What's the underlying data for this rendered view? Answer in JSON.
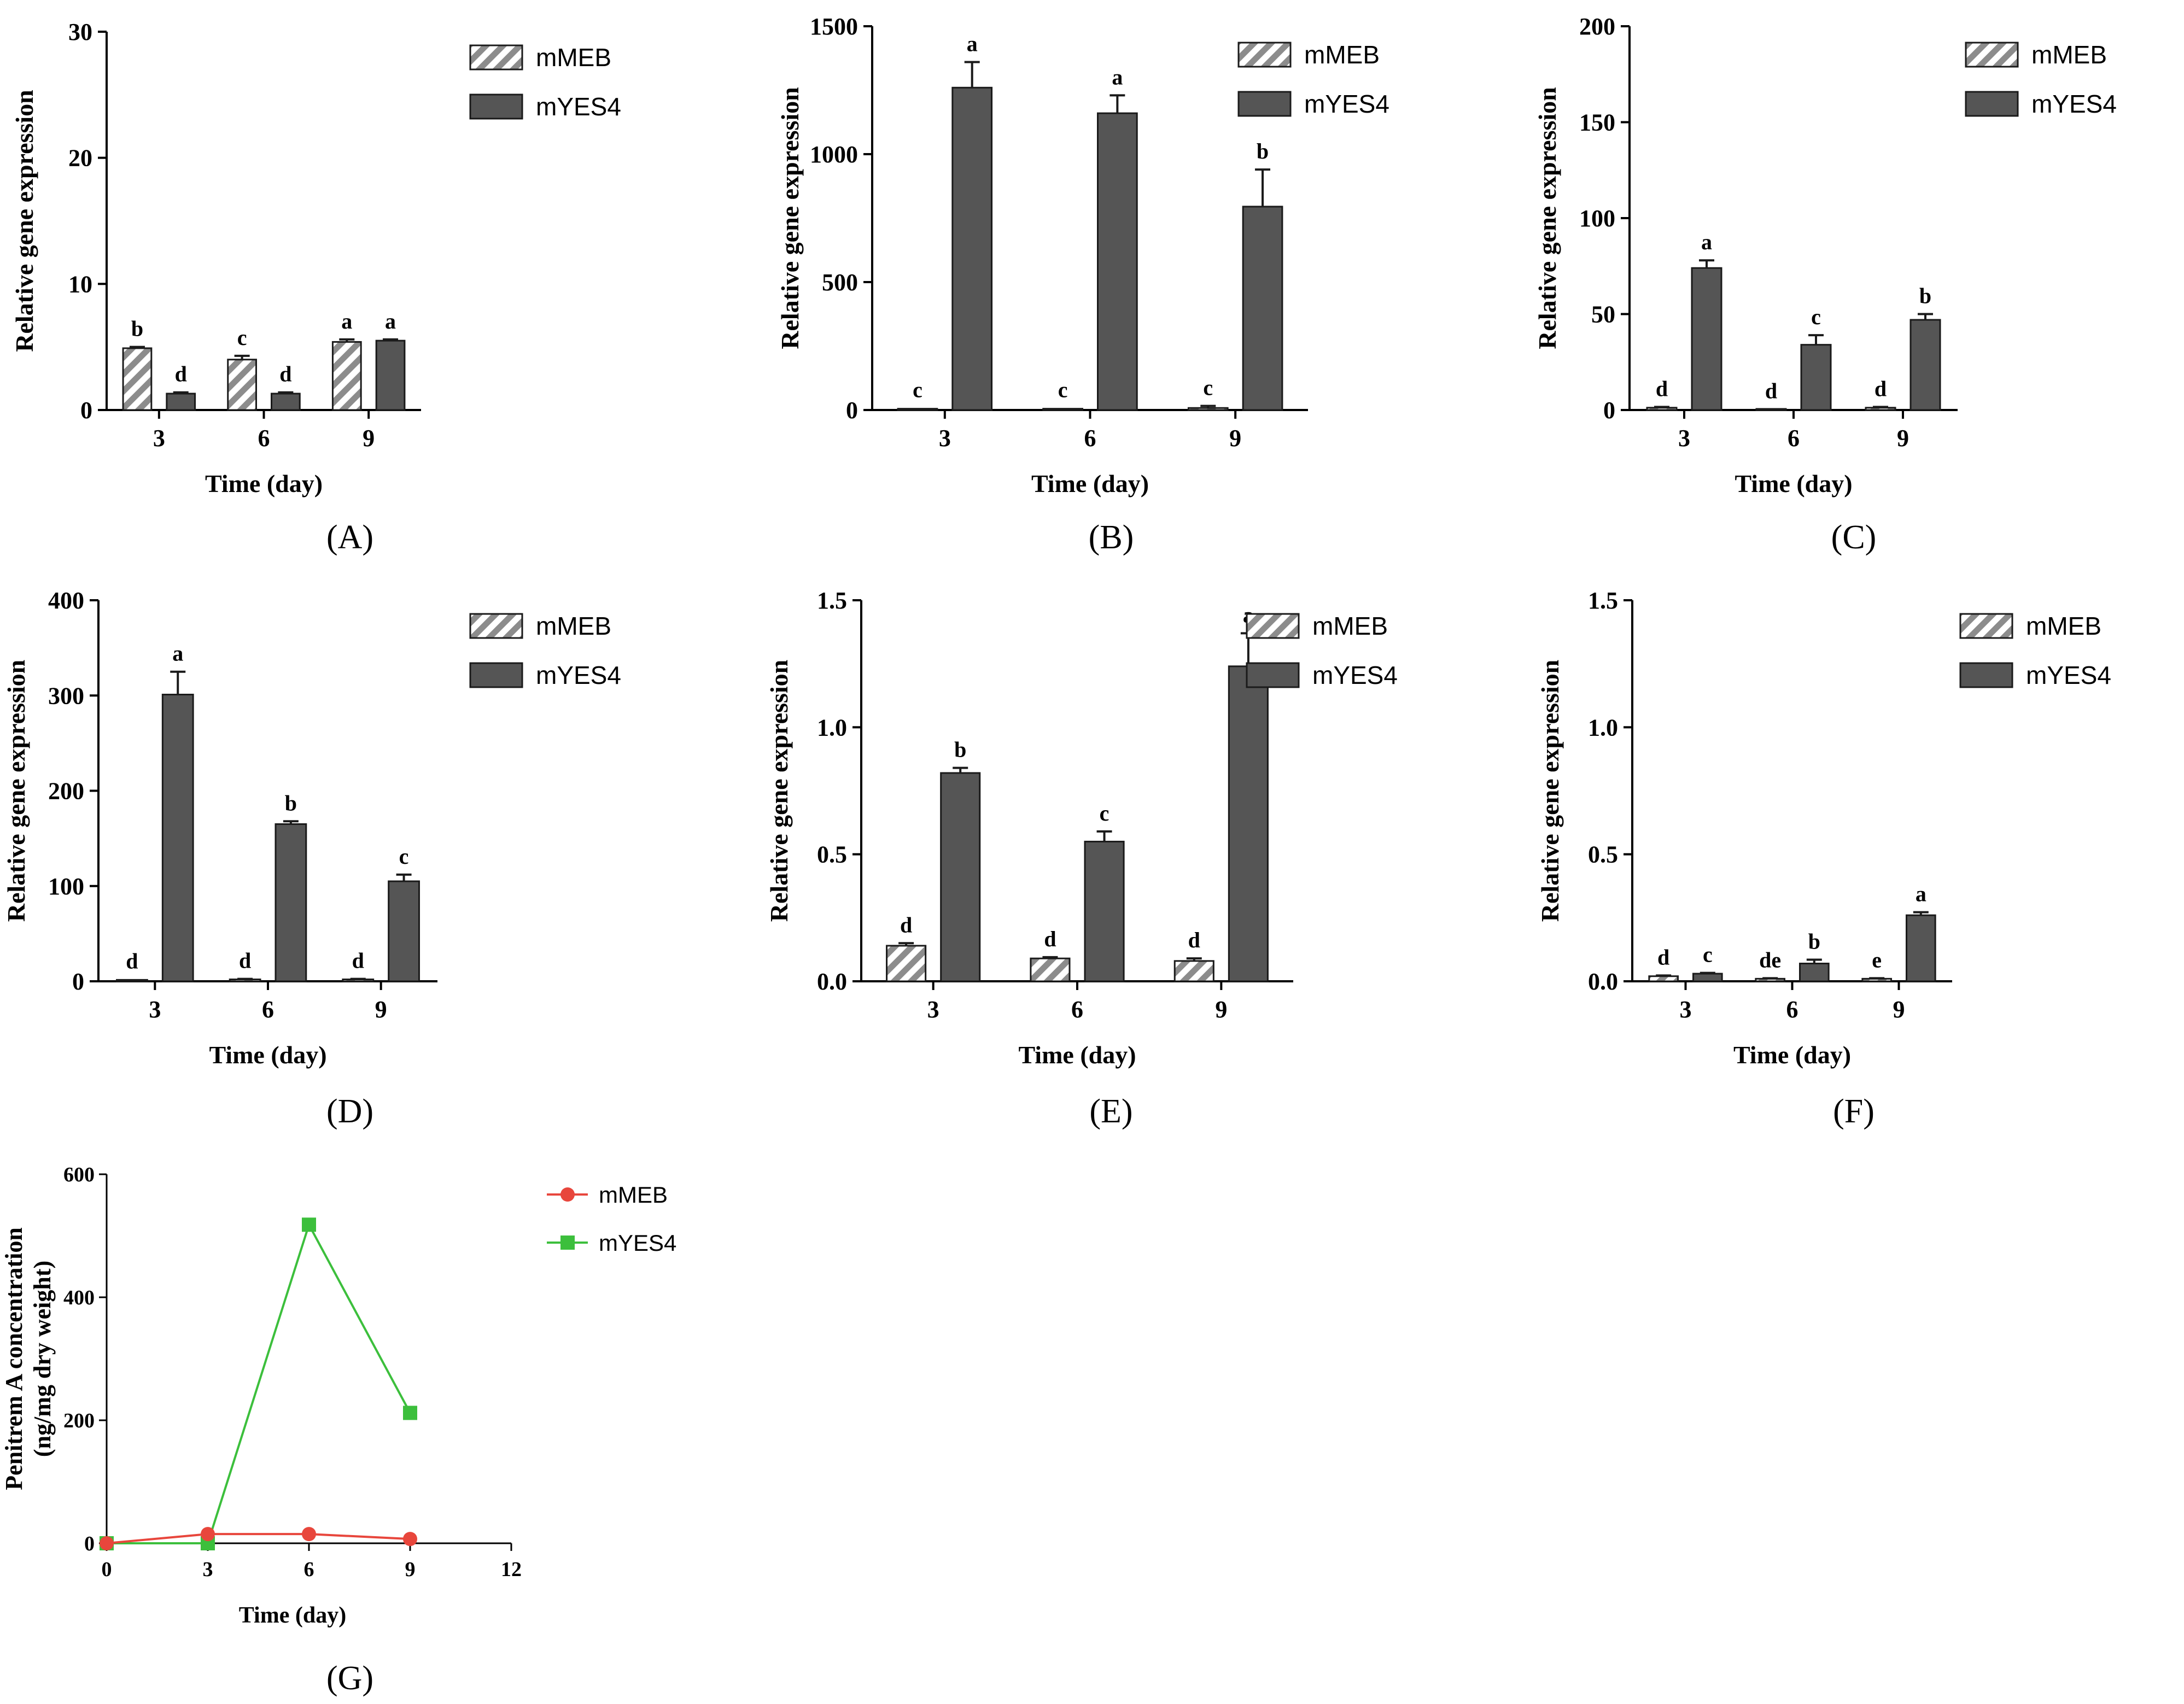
{
  "series_colors": {
    "mMEB": "#e8463c",
    "mYES4": "#3cbf3c",
    "bar_dark": "#555555",
    "hatch": "#8c8c8c"
  },
  "chart_data": [
    {
      "type": "bar",
      "panel": "A",
      "panel_label": "(A)",
      "xlabel": "Time (day)",
      "ylabel": "Relative gene expression",
      "categories": [
        "3",
        "6",
        "9"
      ],
      "ylim": [
        0,
        30
      ],
      "yticks": [
        "0",
        "10",
        "20",
        "30"
      ],
      "series": [
        {
          "name": "mMEB",
          "values": [
            4.9,
            4.0,
            5.4
          ],
          "errors": [
            0.1,
            0.3,
            0.2
          ],
          "letters": [
            "b",
            "c",
            "a"
          ]
        },
        {
          "name": "mYES4",
          "values": [
            1.3,
            1.3,
            5.5
          ],
          "errors": [
            0.1,
            0.1,
            0.1
          ],
          "letters": [
            "d",
            "d",
            "a"
          ]
        }
      ]
    },
    {
      "type": "bar",
      "panel": "B",
      "panel_label": "(B)",
      "xlabel": "Time (day)",
      "ylabel": "Relative gene expression",
      "categories": [
        "3",
        "6",
        "9"
      ],
      "ylim": [
        0,
        1500
      ],
      "yticks": [
        "0",
        "500",
        "1000",
        "1500"
      ],
      "series": [
        {
          "name": "mMEB",
          "values": [
            5,
            5,
            8
          ],
          "errors": [
            2,
            2,
            8
          ],
          "letters": [
            "c",
            "c",
            "c"
          ]
        },
        {
          "name": "mYES4",
          "values": [
            1260,
            1160,
            795
          ],
          "errors": [
            100,
            70,
            145
          ],
          "letters": [
            "a",
            "a",
            "b"
          ]
        }
      ]
    },
    {
      "type": "bar",
      "panel": "C",
      "panel_label": "(C)",
      "xlabel": "Time (day)",
      "ylabel": "Relative gene expression",
      "categories": [
        "3",
        "6",
        "9"
      ],
      "ylim": [
        0,
        200
      ],
      "yticks": [
        "0",
        "50",
        "100",
        "150",
        "200"
      ],
      "series": [
        {
          "name": "mMEB",
          "values": [
            1.2,
            0.3,
            1.2
          ],
          "errors": [
            0.4,
            0.1,
            0.4
          ],
          "letters": [
            "d",
            "d",
            "d"
          ]
        },
        {
          "name": "mYES4",
          "values": [
            74,
            34,
            47
          ],
          "errors": [
            4,
            5,
            3
          ],
          "letters": [
            "a",
            "c",
            "b"
          ]
        }
      ]
    },
    {
      "type": "bar",
      "panel": "D",
      "panel_label": "(D)",
      "xlabel": "Time (day)",
      "ylabel": "Relative gene expression",
      "categories": [
        "3",
        "6",
        "9"
      ],
      "ylim": [
        0,
        400
      ],
      "yticks": [
        "0",
        "100",
        "200",
        "300",
        "400"
      ],
      "series": [
        {
          "name": "mMEB",
          "values": [
            1.5,
            2,
            2
          ],
          "errors": [
            0.5,
            0.5,
            0.5
          ],
          "letters": [
            "d",
            "d",
            "d"
          ]
        },
        {
          "name": "mYES4",
          "values": [
            301,
            165,
            105
          ],
          "errors": [
            24,
            3,
            7
          ],
          "letters": [
            "a",
            "b",
            "c"
          ]
        }
      ]
    },
    {
      "type": "bar",
      "panel": "E",
      "panel_label": "(E)",
      "xlabel": "Time (day)",
      "ylabel": "Relative gene expression",
      "categories": [
        "3",
        "6",
        "9"
      ],
      "ylim": [
        0,
        1.5
      ],
      "yticks": [
        "0.0",
        "0.5",
        "1.0",
        "1.5"
      ],
      "series": [
        {
          "name": "mMEB",
          "values": [
            0.14,
            0.09,
            0.08
          ],
          "errors": [
            0.01,
            0.005,
            0.01
          ],
          "letters": [
            "d",
            "d",
            "d"
          ]
        },
        {
          "name": "mYES4",
          "values": [
            0.82,
            0.55,
            1.24
          ],
          "errors": [
            0.02,
            0.04,
            0.13
          ],
          "letters": [
            "b",
            "c",
            "a"
          ]
        }
      ]
    },
    {
      "type": "bar",
      "panel": "F",
      "panel_label": "(F)",
      "xlabel": "Time (day)",
      "ylabel": "Relative gene expression",
      "categories": [
        "3",
        "6",
        "9"
      ],
      "ylim": [
        0,
        1.5
      ],
      "yticks": [
        "0.0",
        "0.5",
        "1.0",
        "1.5"
      ],
      "series": [
        {
          "name": "mMEB",
          "values": [
            0.02,
            0.01,
            0.01
          ],
          "errors": [
            0.003,
            0.002,
            0.002
          ],
          "letters": [
            "d",
            "de",
            "e"
          ]
        },
        {
          "name": "mYES4",
          "values": [
            0.03,
            0.07,
            0.26
          ],
          "errors": [
            0.003,
            0.015,
            0.012
          ],
          "letters": [
            "c",
            "b",
            "a"
          ]
        }
      ]
    },
    {
      "type": "line",
      "panel": "G",
      "panel_label": "(G)",
      "xlabel": "Time (day)",
      "ylabel_lines": [
        "Penitrem A concentration",
        "(ng/mg dry weight)"
      ],
      "xlim": [
        0,
        12
      ],
      "ylim": [
        0,
        600
      ],
      "xticks": [
        "0",
        "3",
        "6",
        "9",
        "12"
      ],
      "yticks": [
        "0",
        "200",
        "400",
        "600"
      ],
      "series": [
        {
          "name": "mMEB",
          "marker": "circle",
          "x": [
            0,
            3,
            6,
            9
          ],
          "y": [
            0,
            15,
            15,
            7
          ]
        },
        {
          "name": "mYES4",
          "marker": "square",
          "x": [
            0,
            3,
            6,
            9
          ],
          "y": [
            0,
            0,
            518,
            212
          ]
        }
      ]
    }
  ]
}
